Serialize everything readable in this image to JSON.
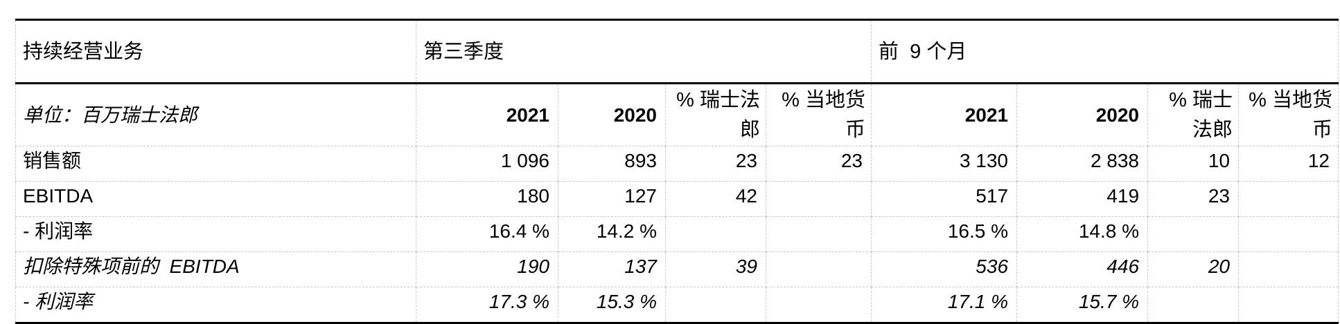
{
  "header": {
    "segment": "持续经营业务",
    "q3": "第三季度",
    "nine_months": "前  9 个月",
    "unit": "单位：百万瑞士法郎",
    "columns": [
      "2021",
      "2020",
      "% 瑞士法郎",
      "% 当地货币",
      "2021",
      "2020",
      "% 瑞士法郎",
      "% 当地货币"
    ]
  },
  "rows": [
    {
      "label": "销售额",
      "values": [
        "1 096",
        "893",
        "23",
        "23",
        "3 130",
        "2 838",
        "10",
        "12"
      ]
    },
    {
      "label": "EBITDA",
      "values": [
        "180",
        "127",
        "42",
        "",
        "517",
        "419",
        "23",
        ""
      ]
    },
    {
      "label": "- 利润率",
      "values": [
        "16.4 %",
        "14.2 %",
        "",
        "",
        "16.5 %",
        "14.8 %",
        "",
        ""
      ]
    },
    {
      "label": "扣除特殊项前的  EBITDA",
      "values": [
        "190",
        "137",
        "39",
        "",
        "536",
        "446",
        "20",
        ""
      ]
    },
    {
      "label": "- 利润率",
      "values": [
        "17.3 %",
        "15.3 %",
        "",
        "",
        "17.1 %",
        "15.7 %",
        "",
        ""
      ]
    }
  ]
}
